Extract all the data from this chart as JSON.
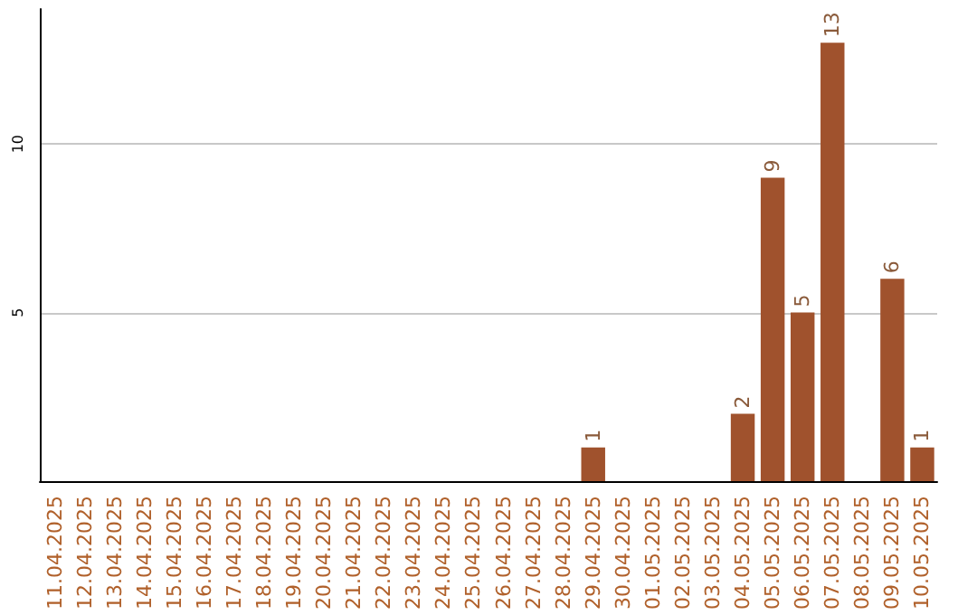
{
  "chart_data": {
    "type": "bar",
    "categories": [
      "11.04.2025",
      "12.04.2025",
      "13.04.2025",
      "14.04.2025",
      "15.04.2025",
      "16.04.2025",
      "17.04.2025",
      "18.04.2025",
      "19.04.2025",
      "20.04.2025",
      "21.04.2025",
      "22.04.2025",
      "23.04.2025",
      "24.04.2025",
      "25.04.2025",
      "26.04.2025",
      "27.04.2025",
      "28.04.2025",
      "29.04.2025",
      "30.04.2025",
      "01.05.2025",
      "02.05.2025",
      "03.05.2025",
      "04.05.2025",
      "05.05.2025",
      "06.05.2025",
      "07.05.2025",
      "08.05.2025",
      "09.05.2025",
      "10.05.2025"
    ],
    "values": [
      null,
      null,
      null,
      null,
      null,
      null,
      null,
      null,
      null,
      null,
      null,
      null,
      null,
      null,
      null,
      null,
      null,
      null,
      1,
      null,
      null,
      null,
      null,
      2,
      9,
      5,
      13,
      null,
      6,
      1
    ],
    "color": "#a0522d",
    "ylim": [
      0,
      14
    ],
    "yticks": [
      5,
      10
    ],
    "grid": "y",
    "data_labels": true
  }
}
